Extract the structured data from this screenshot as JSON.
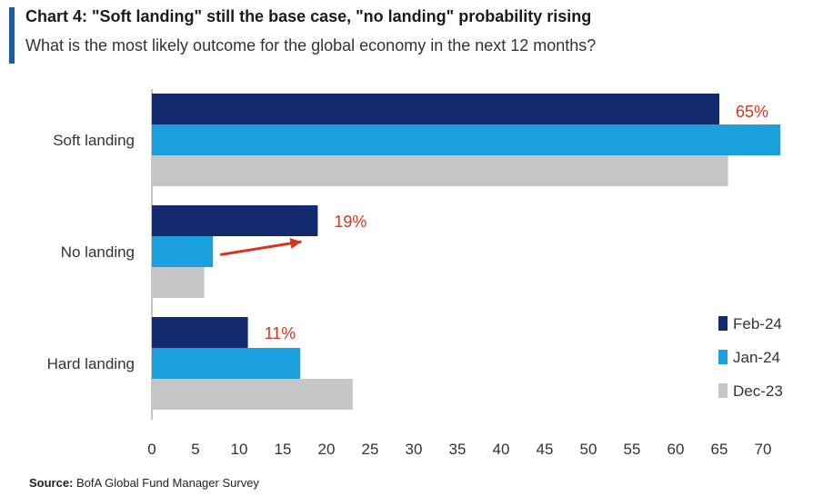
{
  "header": {
    "title": "Chart 4: \"Soft landing\" still the base case, \"no landing\" probability rising",
    "subtitle": "What is the most likely outcome for the global economy in the next 12 months?"
  },
  "footer": {
    "source_label": "Source:",
    "source_text": "BofA Global Fund Manager Survey"
  },
  "colors": {
    "accent": "#1f5aa8",
    "annotation": "#e0301e"
  },
  "chart_data": {
    "type": "bar",
    "orientation": "horizontal",
    "categories": [
      "Soft landing",
      "No landing",
      "Hard landing"
    ],
    "series": [
      {
        "name": "Feb-24",
        "color": "#142a6e",
        "values": [
          65,
          19,
          11
        ]
      },
      {
        "name": "Jan-24",
        "color": "#1aa0dc",
        "values": [
          72,
          7,
          17
        ]
      },
      {
        "name": "Dec-23",
        "color": "#c6c6c6",
        "values": [
          66,
          6,
          23
        ]
      }
    ],
    "xlim": [
      0,
      72
    ],
    "xticks": [
      0,
      5,
      10,
      15,
      20,
      25,
      30,
      35,
      40,
      45,
      50,
      55,
      60,
      65,
      70
    ],
    "annotations": [
      "65%",
      "19%",
      "11%"
    ],
    "arrow": {
      "category": "No landing",
      "from_series": "Jan-24",
      "to_series": "Feb-24"
    },
    "legend_position": "bottom-right",
    "grid": false,
    "xlabel": "",
    "ylabel": ""
  }
}
